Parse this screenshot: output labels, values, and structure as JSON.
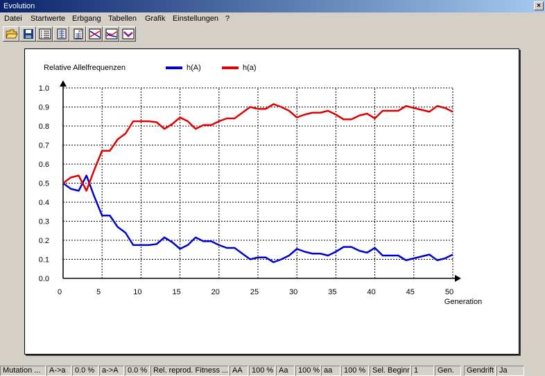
{
  "window": {
    "title": "Evolution",
    "close_glyph": "×"
  },
  "menu": [
    "Datei",
    "Startwerte",
    "Erbgang",
    "Tabellen",
    "Grafik",
    "Einstellungen",
    "?"
  ],
  "toolbar": [
    "open-folder-icon",
    "save-icon",
    "list-icon",
    "table-icon",
    "table-squared-icon",
    "chart-crossing-icon",
    "chart-lines-icon",
    "chart-purple-icon"
  ],
  "chart_data": {
    "type": "line",
    "ylabel": "Relative Allelfrequenzen",
    "xlabel": "Generation",
    "xlim": [
      0,
      50
    ],
    "ylim": [
      0,
      1
    ],
    "x_ticks": [
      "0",
      "5",
      "10",
      "15",
      "20",
      "25",
      "30",
      "35",
      "40",
      "45",
      "50"
    ],
    "y_ticks": [
      "0.0",
      "0.1",
      "0.2",
      "0.3",
      "0.4",
      "0.5",
      "0.6",
      "0.7",
      "0.8",
      "0.9",
      "1.0"
    ],
    "grid": true,
    "legend_position": "top",
    "series": [
      {
        "name": "h(A)",
        "color": "#0000cc",
        "values": [
          0.5,
          0.47,
          0.46,
          0.54,
          0.43,
          0.33,
          0.33,
          0.27,
          0.24,
          0.175,
          0.175,
          0.175,
          0.18,
          0.215,
          0.19,
          0.155,
          0.175,
          0.215,
          0.195,
          0.195,
          0.175,
          0.16,
          0.16,
          0.13,
          0.1,
          0.11,
          0.11,
          0.085,
          0.1,
          0.12,
          0.155,
          0.14,
          0.13,
          0.13,
          0.12,
          0.14,
          0.165,
          0.165,
          0.145,
          0.135,
          0.16,
          0.12,
          0.12,
          0.12,
          0.095,
          0.105,
          0.115,
          0.125,
          0.095,
          0.105,
          0.125
        ]
      },
      {
        "name": "h(a)",
        "color": "#e00000",
        "values": [
          0.5,
          0.53,
          0.54,
          0.46,
          0.57,
          0.67,
          0.67,
          0.73,
          0.76,
          0.825,
          0.825,
          0.825,
          0.82,
          0.785,
          0.81,
          0.845,
          0.825,
          0.785,
          0.805,
          0.805,
          0.825,
          0.84,
          0.84,
          0.87,
          0.9,
          0.89,
          0.89,
          0.915,
          0.9,
          0.88,
          0.845,
          0.86,
          0.87,
          0.87,
          0.88,
          0.86,
          0.835,
          0.835,
          0.855,
          0.865,
          0.84,
          0.88,
          0.88,
          0.88,
          0.905,
          0.895,
          0.885,
          0.875,
          0.905,
          0.895,
          0.875
        ]
      }
    ]
  },
  "status": [
    "Mutation ...",
    "A->a",
    "0.0 %",
    "a->A",
    "0.0 %",
    "Rel. reprod. Fitness ...",
    "AA",
    "100 %",
    "Aa",
    "100 %",
    "aa",
    "100 %",
    "Sel. Beginn",
    "1",
    "Gen.",
    "Gendrift",
    "Ja"
  ]
}
